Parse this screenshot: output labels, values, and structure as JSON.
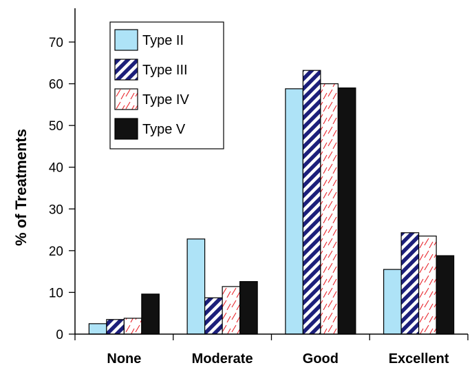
{
  "chart_data": {
    "type": "bar",
    "title": "",
    "xlabel": "",
    "ylabel": "% of Treatments",
    "ylim": [
      0,
      75
    ],
    "yticks": [
      0,
      10,
      20,
      30,
      40,
      50,
      60,
      70
    ],
    "grid": false,
    "legend_position": "top-left",
    "categories": [
      "None",
      "Moderate",
      "Good",
      "Excellent"
    ],
    "series": [
      {
        "name": "Type II",
        "values": [
          2.5,
          22.8,
          58.8,
          15.5
        ],
        "fill": "#aee3f7",
        "pattern": "solid"
      },
      {
        "name": "Type III",
        "values": [
          3.5,
          8.7,
          63.2,
          24.3
        ],
        "fill": "#1c1f7a",
        "pattern": "diagonal-stripes"
      },
      {
        "name": "Type IV",
        "values": [
          3.8,
          11.4,
          60.0,
          23.5
        ],
        "fill": "#e8242b",
        "pattern": "red-hatch"
      },
      {
        "name": "Type V",
        "values": [
          9.6,
          12.6,
          59.0,
          18.8
        ],
        "fill": "#111111",
        "pattern": "solid"
      }
    ]
  }
}
